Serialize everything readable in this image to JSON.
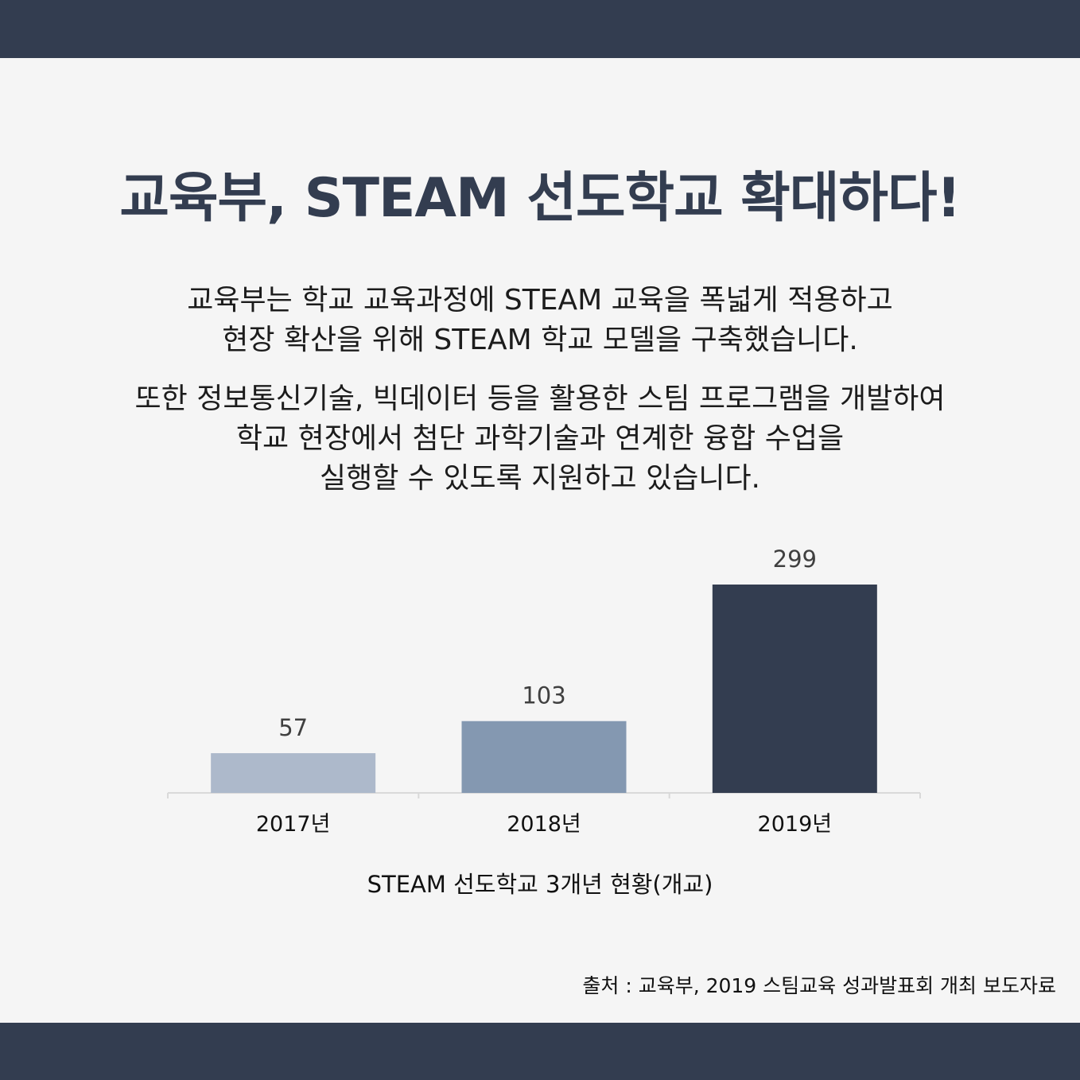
{
  "header": {
    "headline": "교육부, STEAM 선도학교 확대하다!"
  },
  "body_text": {
    "p1_line1": "교육부는 학교 교육과정에 STEAM 교육을 폭넓게 적용하고",
    "p1_line2": "현장 확산을 위해 STEAM 학교 모델을 구축했습니다.",
    "p2_line1": "또한 정보통신기술, 빅데이터 등을 활용한 스팀 프로그램을 개발하여",
    "p2_line2": "학교 현장에서 첨단 과학기술과 연계한 융합 수업을",
    "p2_line3": "실행할 수 있도록 지원하고 있습니다."
  },
  "chart_data": {
    "type": "bar",
    "categories": [
      "2017년",
      "2018년",
      "2019년"
    ],
    "values": [
      57,
      103,
      299
    ],
    "colors": [
      "#adb9cb",
      "#8498b1",
      "#333d50"
    ],
    "title": "STEAM 선도학교 3개년 현황(개교)",
    "xlabel": "",
    "ylabel": "",
    "ylim": [
      0,
      299
    ],
    "grid": false,
    "data_labels": true
  },
  "footer": {
    "source": "출처 : 교육부, 2019 스팀교육 성과발표회 개최 보도자료"
  },
  "colors": {
    "band": "#333d50",
    "background": "#f5f5f5",
    "headline": "#333d50",
    "axis": "#d9d9d9",
    "label_text": "#404040"
  }
}
